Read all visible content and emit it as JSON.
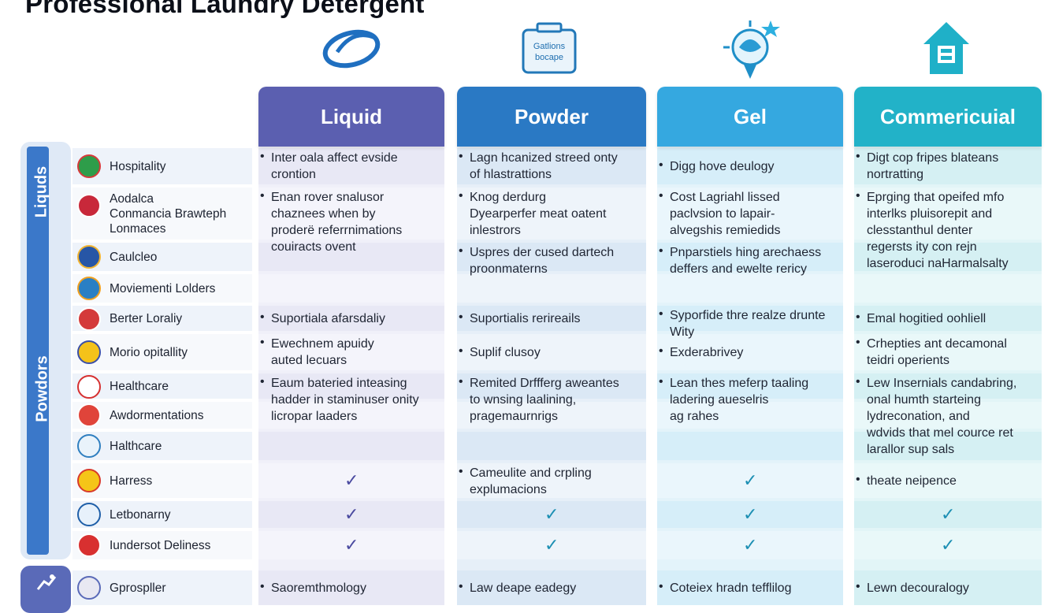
{
  "title": "Professional Laundry Detergent",
  "header_badge_text": "Gatlions\nbocape",
  "columns": [
    {
      "label": "Liquid",
      "color": "#5b5fb0"
    },
    {
      "label": "Powder",
      "color": "#2a79c4"
    },
    {
      "label": "Gel",
      "color": "#35a8e0"
    },
    {
      "label": "Commericuial",
      "color": "#22b2c8"
    }
  ],
  "side_groups": [
    {
      "label": "Liquds"
    },
    {
      "label": "Powdors"
    }
  ],
  "rows": [
    {
      "label": "Hospitality",
      "icon": "green-flag-icon",
      "cells": [
        "Inter oala affect evside\ncrontion",
        "Lagn hcanized streed onty\nof hlastrattions",
        "Digg hove deulogy",
        "Digt cop fripes blateans\nnortratting"
      ]
    },
    {
      "label": "Aodalca\nConmancia Brawteph\nLonmaces",
      "icon": "flag-icons",
      "cells": [
        "Enan rover snalusor\nchaznees when by\nproderë referrnimations\ncouiracts ovent",
        "Knog derdurg\nDyearperfer meat oatent\ninlestrors",
        "Cost Lagriahl lissed\npaclvsion to lapair-\nalvegshis remiedids",
        "Eprging that opeifed mfo\ninterlks pluisorepit and\nclesstanthul denter\nregersts ity con rejn\nlaseroduci naHarmalsalty"
      ]
    },
    {
      "label": "Caulcleo",
      "icon": "building-icon",
      "cells": [
        "",
        "Uspres der cused dartech\nproonmaterns",
        "Pnparstiels hing arechaess\ndeffers and ewelte rericy",
        ""
      ]
    },
    {
      "label": "Moviementi Lolders",
      "icon": "chart-icon",
      "cells": [
        "",
        "",
        "",
        ""
      ]
    },
    {
      "label": "Berter Loraliy",
      "icon": "us-flag-icon",
      "cells": [
        "Suportiala afarsdaliy",
        "Suportialis rerireails",
        "Syporfide thre realze drunte\nWity",
        "Emal hogitied oohliell"
      ]
    },
    {
      "label": "Morio opitallity",
      "icon": "bell-icon",
      "cells": [
        "Ewechnem apuidy\nauted lecuars",
        "Suplif clusoy",
        "Exderabrivey",
        "Crhepties ant decamonal\nteidri operients"
      ]
    },
    {
      "label": "Healthcare",
      "icon": "no-entry-icon",
      "cells": [
        "Eaum bateried inteasing\nhadder in staminuser onity\nlicropar laaders",
        "Remited Drffferg aweantes\nto wnsing laalining,\npragemaurnrigs",
        "Lean thes meferp taaling\nladering aueselris\nag rahes",
        "Lew Insernials candabring,\nonal humth starteing\nlydreconation, and\nwdvids that mel cource ret\nlarallor sup sals"
      ]
    },
    {
      "label": "Awdormentations",
      "icon": "red-badge-icon",
      "cells": [
        "",
        "",
        "",
        ""
      ]
    },
    {
      "label": "Halthcare",
      "icon": "house-icon",
      "cells": [
        "",
        "",
        "",
        ""
      ]
    },
    {
      "label": "Harress",
      "icon": "yellow-badge-icon",
      "cells": [
        "✓",
        "Cameulite and crpling\nexplumacions",
        "✓",
        "theate neipence"
      ]
    },
    {
      "label": "Letbonarny",
      "icon": "globe-icon",
      "cells": [
        "✓",
        "✓",
        "✓",
        "✓"
      ]
    },
    {
      "label": "Iundersot Deliness",
      "icon": "red-circle-icon",
      "cells": [
        "✓",
        "✓",
        "✓",
        "✓"
      ]
    },
    {
      "label": "Gprospller",
      "icon": "people-icon",
      "cells": [
        "Saoremthmology",
        "Law deape eadegy",
        "Coteiex hradn tefflilog",
        "Lewn decouralogy"
      ]
    }
  ],
  "colors": {
    "liquid_bg": "#e8e8f5",
    "powder_bg": "#dbe8f5",
    "gel_bg": "#d6eef9",
    "commercial_bg": "#d5f0f3",
    "check_liquid": "#4a4aa0",
    "check_other": "#1c8fb3"
  }
}
